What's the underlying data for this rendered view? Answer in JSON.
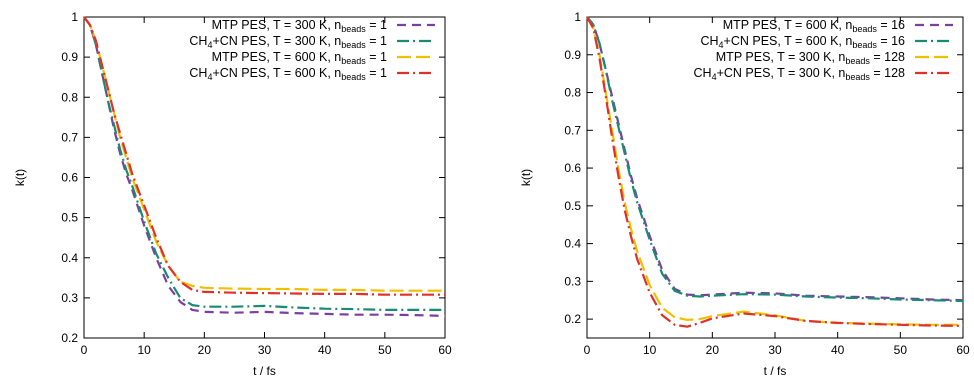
{
  "chart_data": [
    {
      "type": "line",
      "xlabel": "t / fs",
      "ylabel": "k(t)",
      "xlim": [
        0,
        60
      ],
      "ylim": [
        0.2,
        1.0
      ],
      "xticks": [
        0,
        10,
        20,
        30,
        40,
        50,
        60
      ],
      "yticks": [
        0.2,
        0.3,
        0.4,
        0.5,
        0.6,
        0.7,
        0.8,
        0.9,
        1.0
      ],
      "ytick_labels": [
        "0.2",
        "0.3",
        "0.4",
        "0.5",
        "0.6",
        "0.7",
        "0.8",
        "0.9",
        "1"
      ],
      "grid": false,
      "legend_position": "top-right",
      "series": [
        {
          "legend": {
            "pre": "MTP PES, T = 300 K, n",
            "sub": "beads",
            "post": " = 1"
          },
          "color": "#7b3fa0",
          "dash": "dashed",
          "x": [
            0,
            1,
            2,
            3,
            4,
            5,
            6,
            7,
            8,
            10,
            12,
            14,
            16,
            18,
            20,
            25,
            30,
            35,
            40,
            45,
            50,
            55,
            60
          ],
          "y": [
            1.0,
            0.98,
            0.93,
            0.86,
            0.79,
            0.72,
            0.66,
            0.61,
            0.57,
            0.48,
            0.4,
            0.33,
            0.29,
            0.27,
            0.265,
            0.263,
            0.265,
            0.262,
            0.26,
            0.258,
            0.258,
            0.257,
            0.255
          ]
        },
        {
          "legend": {
            "pre": "CH",
            "sub1": "4",
            "mid": "+CN PES, T = 300 K, n",
            "sub": "beads",
            "post": " = 1"
          },
          "color": "#1a8a73",
          "dash": "dashdot",
          "x": [
            0,
            1,
            2,
            3,
            4,
            5,
            6,
            7,
            8,
            10,
            12,
            14,
            16,
            18,
            20,
            25,
            30,
            35,
            40,
            45,
            50,
            55,
            60
          ],
          "y": [
            1.0,
            0.98,
            0.93,
            0.86,
            0.79,
            0.73,
            0.67,
            0.62,
            0.58,
            0.49,
            0.41,
            0.35,
            0.3,
            0.282,
            0.278,
            0.278,
            0.28,
            0.276,
            0.273,
            0.272,
            0.27,
            0.27,
            0.27
          ]
        },
        {
          "legend": {
            "pre": "MTP PES, T = 600 K, n",
            "sub": "beads",
            "post": " = 1"
          },
          "color": "#f0c000",
          "dash": "longdash",
          "x": [
            0,
            1,
            2,
            3,
            4,
            5,
            6,
            7,
            8,
            10,
            12,
            14,
            16,
            18,
            20,
            25,
            30,
            35,
            40,
            45,
            50,
            55,
            60
          ],
          "y": [
            1.0,
            0.98,
            0.94,
            0.88,
            0.82,
            0.76,
            0.7,
            0.65,
            0.6,
            0.52,
            0.44,
            0.38,
            0.34,
            0.33,
            0.325,
            0.323,
            0.322,
            0.322,
            0.32,
            0.32,
            0.318,
            0.318,
            0.318
          ]
        },
        {
          "legend": {
            "pre": "CH",
            "sub1": "4",
            "mid": "+CN PES, T = 600 K, n",
            "sub": "beads",
            "post": " = 1"
          },
          "color": "#e0302a",
          "dash": "dashdot",
          "x": [
            0,
            1,
            2,
            3,
            4,
            5,
            6,
            7,
            8,
            10,
            12,
            14,
            16,
            18,
            20,
            25,
            30,
            35,
            40,
            45,
            50,
            55,
            60
          ],
          "y": [
            1.0,
            0.98,
            0.94,
            0.88,
            0.82,
            0.76,
            0.71,
            0.66,
            0.61,
            0.53,
            0.45,
            0.38,
            0.34,
            0.32,
            0.315,
            0.313,
            0.312,
            0.311,
            0.31,
            0.31,
            0.308,
            0.308,
            0.308
          ]
        }
      ]
    },
    {
      "type": "line",
      "xlabel": "t / fs",
      "ylabel": "k(t)",
      "xlim": [
        0,
        60
      ],
      "ylim": [
        0.15,
        1.0
      ],
      "xticks": [
        0,
        10,
        20,
        30,
        40,
        50,
        60
      ],
      "yticks": [
        0.2,
        0.3,
        0.4,
        0.5,
        0.6,
        0.7,
        0.8,
        0.9,
        1.0
      ],
      "ytick_labels": [
        "0.2",
        "0.3",
        "0.4",
        "0.5",
        "0.6",
        "0.7",
        "0.8",
        "0.9",
        "1"
      ],
      "grid": false,
      "legend_position": "top-right",
      "series": [
        {
          "legend": {
            "pre": "MTP PES, T = 600 K, n",
            "sub": "beads",
            "post": " = 16"
          },
          "color": "#7b3fa0",
          "dash": "dashed",
          "x": [
            0,
            1,
            2,
            3,
            4,
            5,
            6,
            7,
            8,
            10,
            12,
            14,
            16,
            18,
            20,
            25,
            30,
            35,
            40,
            45,
            50,
            55,
            60
          ],
          "y": [
            1.0,
            0.98,
            0.93,
            0.86,
            0.79,
            0.72,
            0.65,
            0.58,
            0.52,
            0.42,
            0.33,
            0.28,
            0.265,
            0.263,
            0.265,
            0.27,
            0.268,
            0.262,
            0.26,
            0.258,
            0.255,
            0.252,
            0.25
          ]
        },
        {
          "legend": {
            "pre": "CH",
            "sub1": "4",
            "mid": "+CN PES, T = 600 K, n",
            "sub": "beads",
            "post": " = 16"
          },
          "color": "#1a8a73",
          "dash": "dashdot",
          "x": [
            0,
            1,
            2,
            3,
            4,
            5,
            6,
            7,
            8,
            10,
            12,
            14,
            16,
            18,
            20,
            25,
            30,
            35,
            40,
            45,
            50,
            55,
            60
          ],
          "y": [
            1.0,
            0.98,
            0.93,
            0.86,
            0.78,
            0.71,
            0.64,
            0.57,
            0.51,
            0.41,
            0.32,
            0.275,
            0.262,
            0.26,
            0.262,
            0.266,
            0.265,
            0.26,
            0.257,
            0.255,
            0.252,
            0.25,
            0.248
          ]
        },
        {
          "legend": {
            "pre": "MTP PES, T = 300 K, n",
            "sub": "beads",
            "post": " = 128"
          },
          "color": "#f0c000",
          "dash": "longdash",
          "x": [
            0,
            1,
            2,
            3,
            4,
            5,
            6,
            7,
            8,
            10,
            12,
            14,
            16,
            18,
            20,
            25,
            30,
            35,
            40,
            45,
            50,
            55,
            60
          ],
          "y": [
            1.0,
            0.97,
            0.9,
            0.8,
            0.7,
            0.6,
            0.51,
            0.44,
            0.38,
            0.29,
            0.23,
            0.205,
            0.198,
            0.2,
            0.208,
            0.22,
            0.21,
            0.195,
            0.19,
            0.188,
            0.186,
            0.185,
            0.185
          ]
        },
        {
          "legend": {
            "pre": "CH",
            "sub1": "4",
            "mid": "+CN PES, T = 300 K, n",
            "sub": "beads",
            "post": " = 128"
          },
          "color": "#e0302a",
          "dash": "dashdot",
          "x": [
            0,
            1,
            2,
            3,
            4,
            5,
            6,
            7,
            8,
            10,
            12,
            14,
            16,
            18,
            20,
            25,
            30,
            35,
            40,
            45,
            50,
            55,
            60
          ],
          "y": [
            1.0,
            0.97,
            0.89,
            0.79,
            0.68,
            0.58,
            0.49,
            0.42,
            0.36,
            0.27,
            0.21,
            0.185,
            0.18,
            0.19,
            0.202,
            0.215,
            0.208,
            0.195,
            0.19,
            0.187,
            0.185,
            0.183,
            0.182
          ]
        }
      ]
    }
  ]
}
